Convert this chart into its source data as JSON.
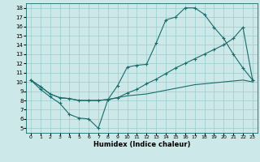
{
  "xlabel": "Humidex (Indice chaleur)",
  "bg_color": "#cce8e8",
  "line_color": "#1a6b6b",
  "grid_color": "#99cccc",
  "xlim": [
    -0.5,
    23.5
  ],
  "ylim": [
    4.5,
    18.5
  ],
  "xticks": [
    0,
    1,
    2,
    3,
    4,
    5,
    6,
    7,
    8,
    9,
    10,
    11,
    12,
    13,
    14,
    15,
    16,
    17,
    18,
    19,
    20,
    21,
    22,
    23
  ],
  "yticks": [
    5,
    6,
    7,
    8,
    9,
    10,
    11,
    12,
    13,
    14,
    15,
    16,
    17,
    18
  ],
  "line1_x": [
    0,
    1,
    2,
    3,
    4,
    5,
    6,
    7,
    8,
    9,
    10,
    11,
    12,
    13,
    14,
    15,
    16,
    17,
    18,
    19,
    20,
    21,
    22,
    23
  ],
  "line1_y": [
    10.2,
    9.2,
    8.4,
    7.7,
    6.5,
    6.1,
    6.0,
    5.0,
    8.1,
    9.6,
    11.6,
    11.8,
    11.9,
    14.2,
    16.7,
    17.0,
    18.0,
    18.0,
    17.3,
    15.9,
    14.7,
    13.0,
    11.5,
    10.2
  ],
  "line2_x": [
    0,
    1,
    2,
    3,
    4,
    5,
    6,
    7,
    8,
    9,
    10,
    11,
    12,
    13,
    14,
    15,
    16,
    17,
    18,
    19,
    20,
    21,
    22,
    23
  ],
  "line2_y": [
    10.2,
    9.5,
    8.7,
    8.3,
    8.2,
    8.0,
    8.0,
    8.0,
    8.1,
    8.3,
    8.8,
    9.2,
    9.8,
    10.3,
    10.9,
    11.5,
    12.0,
    12.5,
    13.0,
    13.5,
    14.0,
    14.7,
    15.9,
    10.2
  ],
  "line3_x": [
    0,
    1,
    2,
    3,
    4,
    5,
    6,
    7,
    8,
    9,
    10,
    11,
    12,
    13,
    14,
    15,
    16,
    17,
    18,
    19,
    20,
    21,
    22,
    23
  ],
  "line3_y": [
    10.2,
    9.5,
    8.7,
    8.3,
    8.2,
    8.0,
    8.0,
    8.0,
    8.1,
    8.3,
    8.5,
    8.6,
    8.7,
    8.9,
    9.1,
    9.3,
    9.5,
    9.7,
    9.8,
    9.9,
    10.0,
    10.1,
    10.2,
    10.0
  ]
}
